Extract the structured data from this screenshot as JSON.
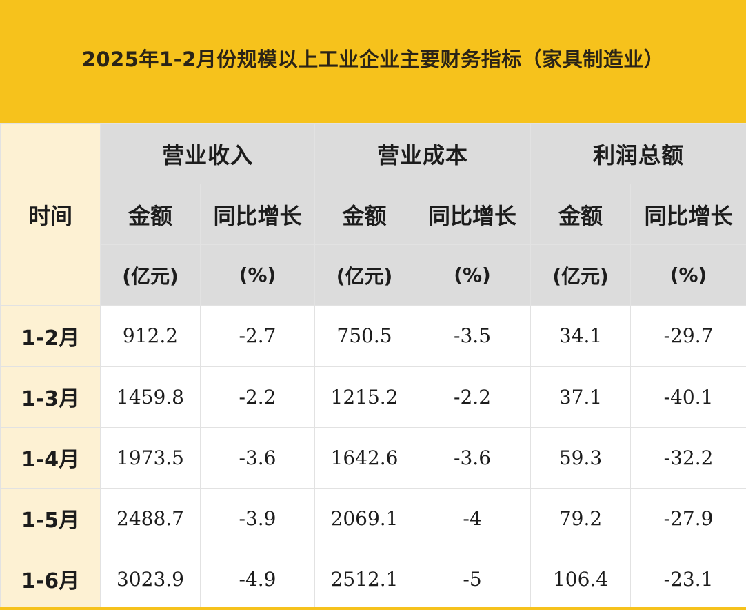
{
  "title": "2025年1-2月份规模以上工业企业主要财务指标（家具制造业）",
  "chart_data": {
    "type": "table",
    "title": "2025年1-2月份规模以上工业企业主要财务指标（家具制造业）",
    "row_header": "时间",
    "groups": [
      "营业收入",
      "营业成本",
      "利润总额"
    ],
    "sub_headers": [
      {
        "label": "金额",
        "unit": "(亿元)"
      },
      {
        "label": "同比增长",
        "unit": "(%)"
      }
    ],
    "periods": [
      "1-2月",
      "1-3月",
      "1-4月",
      "1-5月",
      "1-6月"
    ],
    "rows": [
      {
        "period": "1-2月",
        "revenue": "912.2",
        "revenue_yoy": "-2.7",
        "cost": "750.5",
        "cost_yoy": "-3.5",
        "profit": "34.1",
        "profit_yoy": "-29.7"
      },
      {
        "period": "1-3月",
        "revenue": "1459.8",
        "revenue_yoy": "-2.2",
        "cost": "1215.2",
        "cost_yoy": "-2.2",
        "profit": "37.1",
        "profit_yoy": "-40.1"
      },
      {
        "period": "1-4月",
        "revenue": "1973.5",
        "revenue_yoy": "-3.6",
        "cost": "1642.6",
        "cost_yoy": "-3.6",
        "profit": "59.3",
        "profit_yoy": "-32.2"
      },
      {
        "period": "1-5月",
        "revenue": "2488.7",
        "revenue_yoy": "-3.9",
        "cost": "2069.1",
        "cost_yoy": "-4",
        "profit": "79.2",
        "profit_yoy": "-27.9"
      },
      {
        "period": "1-6月",
        "revenue": "3023.9",
        "revenue_yoy": "-4.9",
        "cost": "2512.1",
        "cost_yoy": "-5",
        "profit": "106.4",
        "profit_yoy": "-23.1"
      }
    ]
  },
  "colors": {
    "title_bg": "#f6c21c",
    "header_bg": "#dcdcdc",
    "period_bg": "#fdf1d3"
  }
}
